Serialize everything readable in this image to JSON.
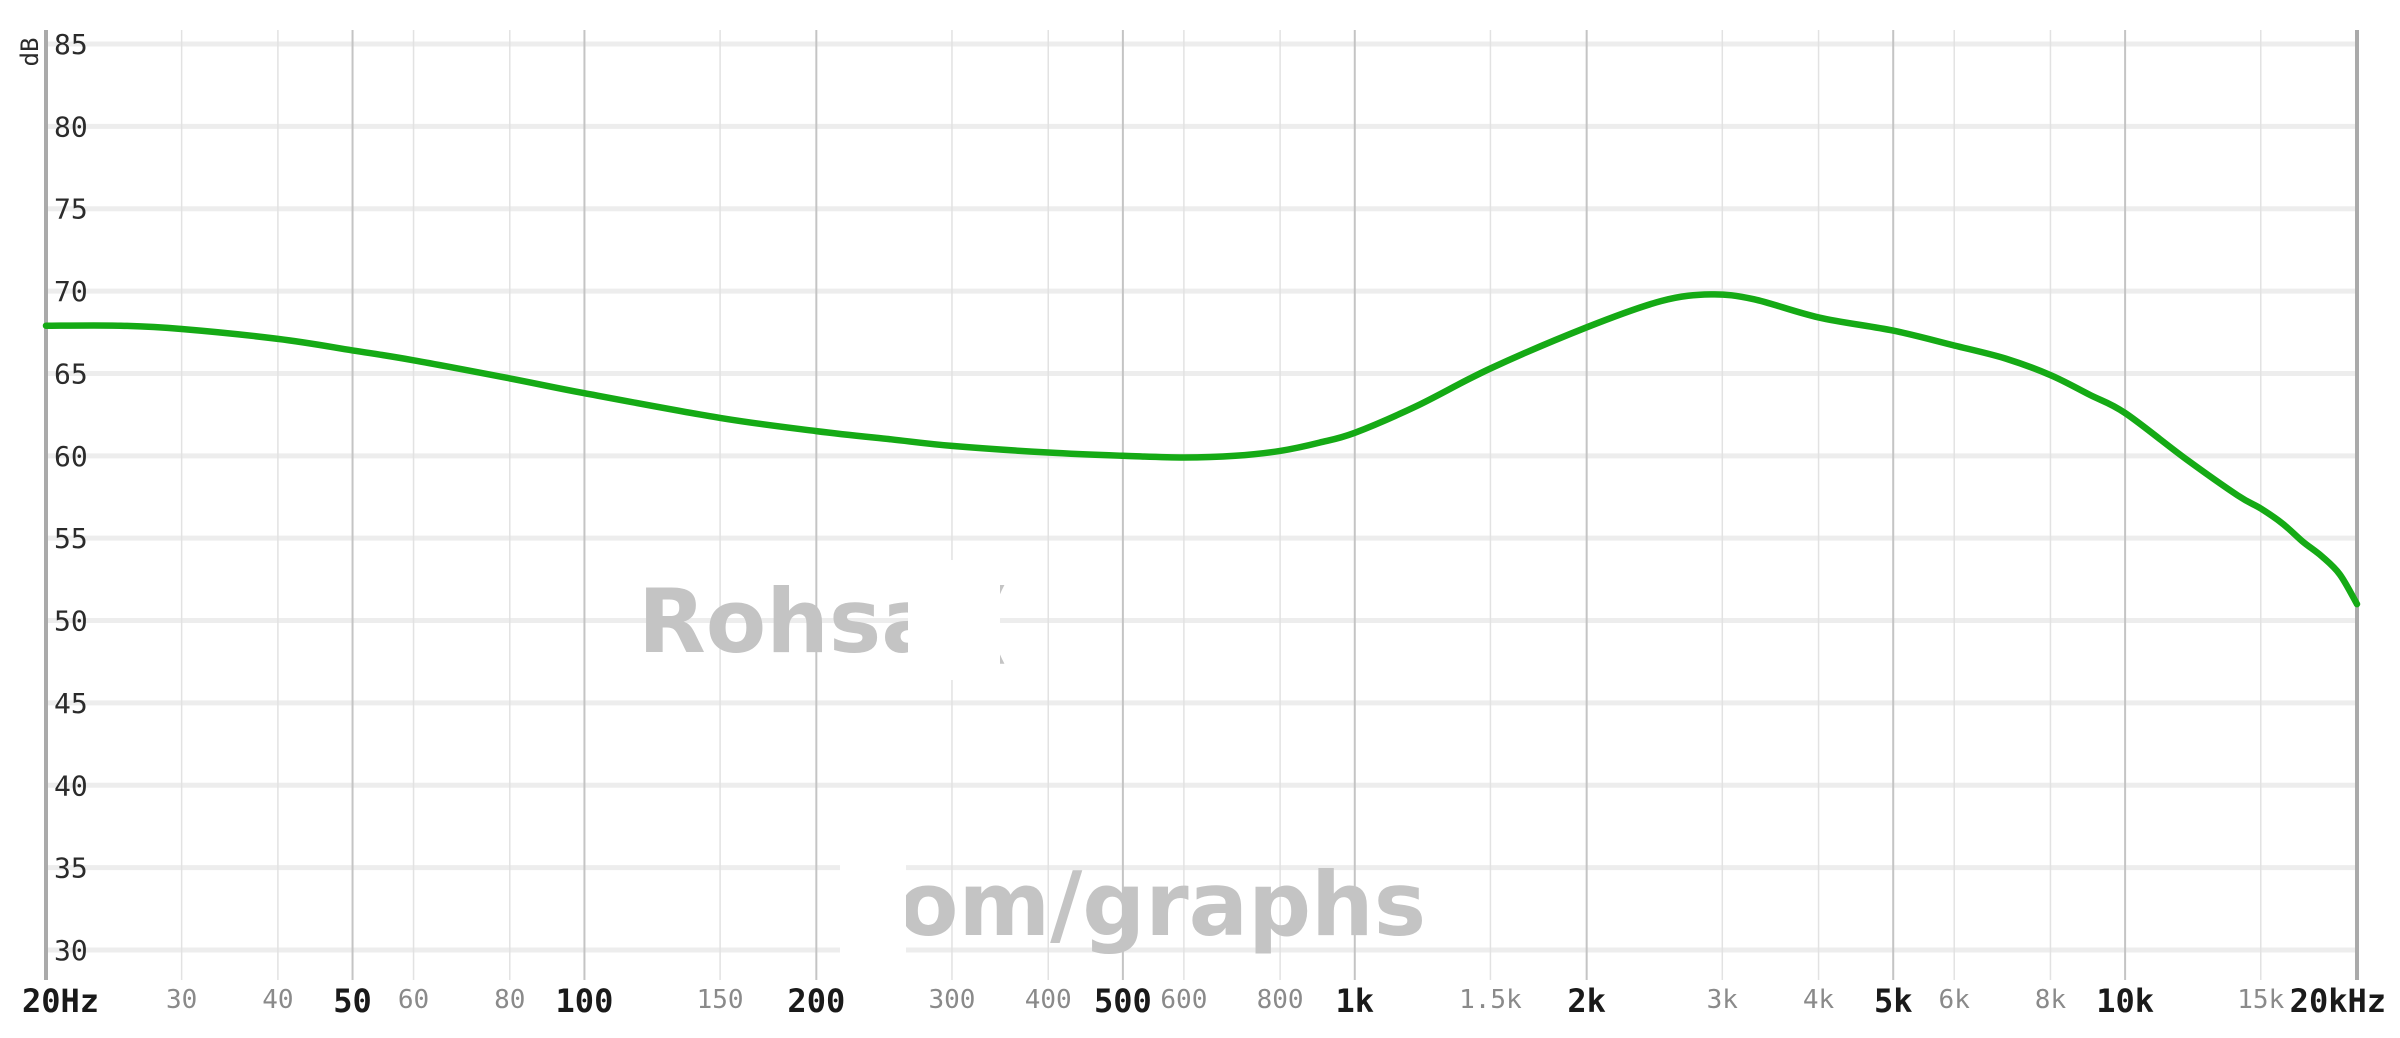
{
  "chart_data": {
    "type": "line",
    "xscale": "log",
    "xlim": [
      20,
      20000
    ],
    "ylim": [
      30,
      85
    ],
    "ylabel": "dB",
    "yticks": [
      30,
      35,
      40,
      45,
      50,
      55,
      60,
      65,
      70,
      75,
      80,
      85
    ],
    "xticks": [
      {
        "value": 20,
        "label": "20Hz",
        "major": true
      },
      {
        "value": 30,
        "label": "30",
        "major": false
      },
      {
        "value": 40,
        "label": "40",
        "major": false
      },
      {
        "value": 50,
        "label": "50",
        "major": true
      },
      {
        "value": 60,
        "label": "60",
        "major": false
      },
      {
        "value": 80,
        "label": "80",
        "major": false
      },
      {
        "value": 100,
        "label": "100",
        "major": true
      },
      {
        "value": 150,
        "label": "150",
        "major": false
      },
      {
        "value": 200,
        "label": "200",
        "major": true
      },
      {
        "value": 300,
        "label": "300",
        "major": false
      },
      {
        "value": 400,
        "label": "400",
        "major": false
      },
      {
        "value": 500,
        "label": "500",
        "major": true
      },
      {
        "value": 600,
        "label": "600",
        "major": false
      },
      {
        "value": 800,
        "label": "800",
        "major": false
      },
      {
        "value": 1000,
        "label": "1k",
        "major": true
      },
      {
        "value": 1500,
        "label": "1.5k",
        "major": false
      },
      {
        "value": 2000,
        "label": "2k",
        "major": true
      },
      {
        "value": 3000,
        "label": "3k",
        "major": false
      },
      {
        "value": 4000,
        "label": "4k",
        "major": false
      },
      {
        "value": 5000,
        "label": "5k",
        "major": true
      },
      {
        "value": 6000,
        "label": "6k",
        "major": false
      },
      {
        "value": 8000,
        "label": "8k",
        "major": false
      },
      {
        "value": 10000,
        "label": "10k",
        "major": true
      },
      {
        "value": 15000,
        "label": "15k",
        "major": false
      },
      {
        "value": 20000,
        "label": "20kHz",
        "major": true
      }
    ],
    "grid": true,
    "series": [
      {
        "color": "#15aa15",
        "x": [
          20,
          25,
          30,
          40,
          50,
          60,
          80,
          100,
          150,
          200,
          250,
          300,
          400,
          500,
          600,
          700,
          800,
          900,
          1000,
          1200,
          1500,
          2000,
          2500,
          2900,
          3300,
          4000,
          5000,
          6000,
          7000,
          8000,
          9000,
          10000,
          12000,
          14000,
          15000,
          16000,
          17000,
          18000,
          19000,
          20000
        ],
        "y": [
          67.9,
          67.9,
          67.7,
          67.1,
          66.4,
          65.8,
          64.7,
          63.8,
          62.3,
          61.5,
          61.0,
          60.6,
          60.2,
          60.0,
          59.9,
          60.0,
          60.3,
          60.8,
          61.4,
          63.0,
          65.3,
          67.8,
          69.4,
          69.8,
          69.5,
          68.4,
          67.6,
          66.7,
          65.9,
          64.9,
          63.7,
          62.6,
          59.8,
          57.6,
          56.8,
          55.9,
          54.8,
          53.9,
          52.8,
          51.0
        ]
      }
    ],
    "watermark": [
      "Rohsa (",
      "om/graphs"
    ]
  }
}
